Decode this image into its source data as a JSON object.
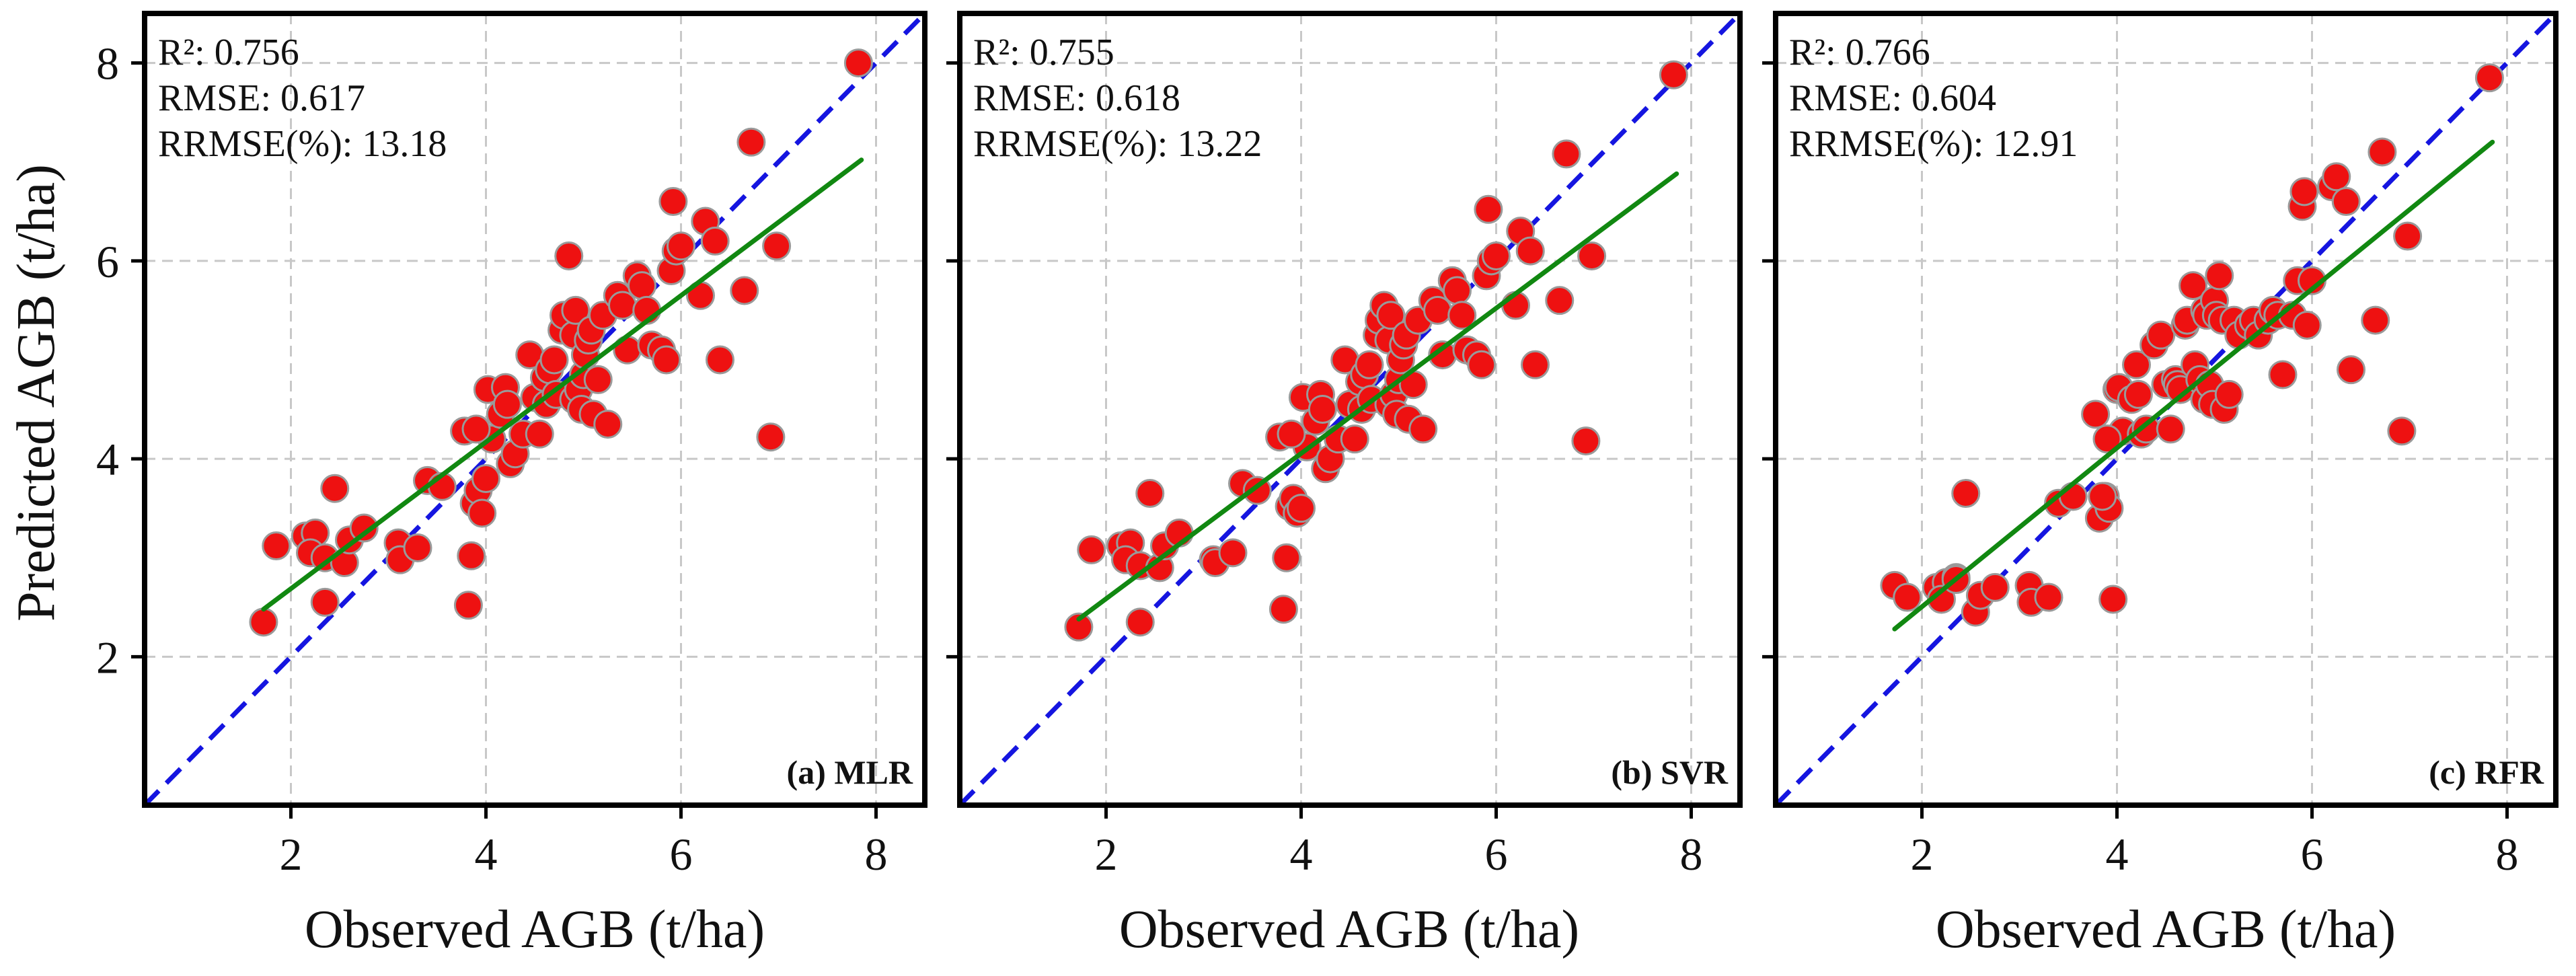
{
  "figure": {
    "ylabel": "Predicted AGB (t/ha)",
    "xlabel": "Observed AGB (t/ha)"
  },
  "colors": {
    "point_fill": "#ee1111",
    "point_edge": "#9a9a9a",
    "one_to_one": "#1515e0",
    "fit_line": "#118811",
    "grid": "#c8c8c8",
    "frame": "#000000"
  },
  "chart_data": [
    {
      "type": "scatter",
      "panel_label": "(a) MLR",
      "xlabel": "Observed AGB (t/ha)",
      "ylabel": "Predicted AGB (t/ha)",
      "xlim": [
        0.5,
        8.5
      ],
      "ylim": [
        0.5,
        8.5
      ],
      "xticks": [
        2,
        4,
        6,
        8
      ],
      "yticks": [
        2,
        4,
        6,
        8
      ],
      "grid": true,
      "stats": [
        "R²: 0.756",
        "RMSE: 0.617",
        "RRMSE(%): 13.18"
      ],
      "reference_line": {
        "name": "1:1 line",
        "x": [
          0.5,
          8.5
        ],
        "y": [
          0.5,
          8.5
        ]
      },
      "fit_line": {
        "x": [
          1.72,
          7.85
        ],
        "y": [
          2.48,
          7.02
        ]
      },
      "x": [
        1.72,
        1.85,
        2.15,
        2.25,
        2.2,
        2.35,
        2.45,
        2.55,
        2.6,
        2.75,
        3.1,
        3.12,
        3.3,
        3.4,
        3.55,
        3.78,
        3.82,
        3.88,
        3.92,
        3.96,
        4.0,
        4.02,
        4.06,
        4.15,
        4.2,
        4.22,
        4.25,
        4.3,
        4.38,
        4.45,
        4.5,
        4.55,
        4.6,
        4.62,
        4.65,
        4.7,
        4.72,
        4.78,
        4.8,
        4.85,
        4.9,
        4.9,
        4.92,
        4.95,
        4.98,
        5.0,
        5.02,
        5.05,
        5.08,
        5.1,
        5.15,
        5.2,
        5.25,
        5.35,
        5.4,
        5.45,
        5.55,
        5.6,
        5.65,
        5.7,
        5.8,
        5.85,
        5.9,
        5.92,
        5.95,
        6.0,
        6.2,
        6.25,
        6.35,
        6.4,
        6.65,
        6.72,
        6.92,
        6.98,
        7.82,
        3.85,
        3.9,
        2.35
      ],
      "y": [
        2.35,
        3.12,
        3.22,
        3.25,
        3.05,
        3.0,
        3.7,
        2.95,
        3.18,
        3.3,
        3.15,
        2.98,
        3.1,
        3.78,
        3.72,
        4.28,
        2.52,
        3.55,
        3.68,
        3.45,
        3.8,
        4.7,
        4.2,
        4.45,
        4.72,
        4.55,
        3.95,
        4.05,
        4.25,
        5.05,
        4.62,
        4.25,
        4.82,
        4.55,
        4.9,
        5.0,
        4.65,
        5.3,
        5.45,
        6.05,
        4.6,
        5.25,
        5.5,
        4.7,
        4.5,
        4.85,
        5.05,
        5.2,
        5.3,
        4.45,
        4.8,
        5.45,
        4.35,
        5.65,
        5.55,
        5.1,
        5.85,
        5.75,
        5.5,
        5.15,
        5.1,
        5.0,
        5.9,
        6.6,
        6.1,
        6.15,
        5.65,
        6.4,
        6.2,
        5.0,
        5.7,
        7.2,
        4.22,
        6.15,
        8.0,
        3.02,
        4.3,
        2.55
      ]
    },
    {
      "type": "scatter",
      "panel_label": "(b) SVR",
      "xlabel": "Observed AGB (t/ha)",
      "ylabel": "",
      "xlim": [
        0.5,
        8.5
      ],
      "ylim": [
        0.5,
        8.5
      ],
      "xticks": [
        2,
        4,
        6,
        8
      ],
      "yticks": [
        2,
        4,
        6,
        8
      ],
      "grid": true,
      "stats": [
        "R²: 0.755",
        "RMSE: 0.618",
        "RRMSE(%): 13.22"
      ],
      "reference_line": {
        "name": "1:1 line",
        "x": [
          0.5,
          8.5
        ],
        "y": [
          0.5,
          8.5
        ]
      },
      "fit_line": {
        "x": [
          1.72,
          7.85
        ],
        "y": [
          2.38,
          6.88
        ]
      },
      "x": [
        1.72,
        1.85,
        2.15,
        2.25,
        2.2,
        2.35,
        2.45,
        2.55,
        2.6,
        2.75,
        3.1,
        3.12,
        3.3,
        3.4,
        3.55,
        3.78,
        3.82,
        3.88,
        3.92,
        3.96,
        4.0,
        4.02,
        4.06,
        4.15,
        4.2,
        4.22,
        4.25,
        4.3,
        4.38,
        4.45,
        4.5,
        4.55,
        4.6,
        4.62,
        4.65,
        4.7,
        4.72,
        4.78,
        4.8,
        4.85,
        4.9,
        4.9,
        4.92,
        4.95,
        4.98,
        5.0,
        5.02,
        5.05,
        5.08,
        5.1,
        5.15,
        5.2,
        5.25,
        5.35,
        5.4,
        5.45,
        5.55,
        5.6,
        5.65,
        5.7,
        5.8,
        5.85,
        5.9,
        5.92,
        5.95,
        6.0,
        6.2,
        6.25,
        6.35,
        6.4,
        6.65,
        6.72,
        6.92,
        6.98,
        7.82,
        3.85,
        3.9,
        2.35
      ],
      "y": [
        2.3,
        3.08,
        3.12,
        3.15,
        2.98,
        2.92,
        3.65,
        2.9,
        3.12,
        3.25,
        2.98,
        2.95,
        3.05,
        3.75,
        3.68,
        4.22,
        2.48,
        3.52,
        3.6,
        3.45,
        3.5,
        4.62,
        4.12,
        4.38,
        4.65,
        4.5,
        3.9,
        4.0,
        4.2,
        5.0,
        4.55,
        4.2,
        4.78,
        4.5,
        4.85,
        4.95,
        4.6,
        5.25,
        5.4,
        5.55,
        4.55,
        5.2,
        5.45,
        4.65,
        4.45,
        4.8,
        5.0,
        5.15,
        5.25,
        4.4,
        4.75,
        5.4,
        4.3,
        5.6,
        5.5,
        5.05,
        5.8,
        5.7,
        5.45,
        5.1,
        5.05,
        4.95,
        5.85,
        6.52,
        6.0,
        6.05,
        5.55,
        6.3,
        6.1,
        4.95,
        5.6,
        7.08,
        4.18,
        6.05,
        7.88,
        3.0,
        4.25,
        2.35
      ]
    },
    {
      "type": "scatter",
      "panel_label": "(c) RFR",
      "xlabel": "Observed AGB (t/ha)",
      "ylabel": "",
      "xlim": [
        0.5,
        8.5
      ],
      "ylim": [
        0.5,
        8.5
      ],
      "xticks": [
        2,
        4,
        6,
        8
      ],
      "yticks": [
        2,
        4,
        6,
        8
      ],
      "grid": true,
      "stats": [
        "R²: 0.766",
        "RMSE: 0.604",
        "RRMSE(%): 12.91"
      ],
      "reference_line": {
        "name": "1:1 line",
        "x": [
          0.5,
          8.5
        ],
        "y": [
          0.5,
          8.5
        ]
      },
      "fit_line": {
        "x": [
          1.72,
          7.85
        ],
        "y": [
          2.28,
          7.2
        ]
      },
      "x": [
        1.72,
        1.85,
        2.15,
        2.25,
        2.2,
        2.35,
        2.45,
        2.55,
        2.6,
        2.75,
        3.1,
        3.12,
        3.3,
        3.4,
        3.55,
        3.78,
        3.82,
        3.88,
        3.92,
        3.96,
        4.0,
        4.02,
        4.06,
        4.15,
        4.2,
        4.22,
        4.25,
        4.3,
        4.38,
        4.45,
        4.5,
        4.55,
        4.6,
        4.62,
        4.65,
        4.7,
        4.72,
        4.78,
        4.8,
        4.85,
        4.9,
        4.9,
        4.92,
        4.95,
        4.98,
        5.0,
        5.02,
        5.05,
        5.08,
        5.1,
        5.15,
        5.2,
        5.25,
        5.35,
        5.4,
        5.45,
        5.55,
        5.6,
        5.65,
        5.7,
        5.8,
        5.85,
        5.9,
        5.92,
        5.95,
        6.0,
        6.2,
        6.25,
        6.35,
        6.4,
        6.65,
        6.72,
        6.92,
        6.98,
        7.82,
        3.85,
        3.9,
        2.35
      ],
      "y": [
        2.72,
        2.6,
        2.7,
        2.75,
        2.58,
        2.8,
        3.65,
        2.45,
        2.62,
        2.7,
        2.72,
        2.55,
        2.6,
        3.55,
        3.62,
        4.45,
        3.4,
        3.62,
        3.5,
        2.58,
        4.7,
        4.72,
        4.28,
        4.6,
        4.95,
        4.65,
        4.25,
        4.3,
        5.15,
        5.25,
        4.75,
        4.3,
        4.8,
        4.75,
        4.7,
        5.35,
        5.4,
        5.75,
        4.95,
        4.8,
        4.6,
        5.5,
        5.45,
        4.75,
        4.55,
        5.6,
        5.45,
        5.85,
        5.4,
        4.5,
        4.65,
        5.4,
        5.25,
        5.35,
        5.4,
        5.25,
        5.4,
        5.5,
        5.45,
        4.85,
        5.45,
        5.8,
        6.55,
        6.7,
        5.35,
        5.8,
        6.75,
        6.85,
        6.6,
        4.9,
        5.4,
        7.1,
        4.28,
        6.25,
        7.85,
        3.62,
        4.2,
        2.78
      ]
    }
  ]
}
